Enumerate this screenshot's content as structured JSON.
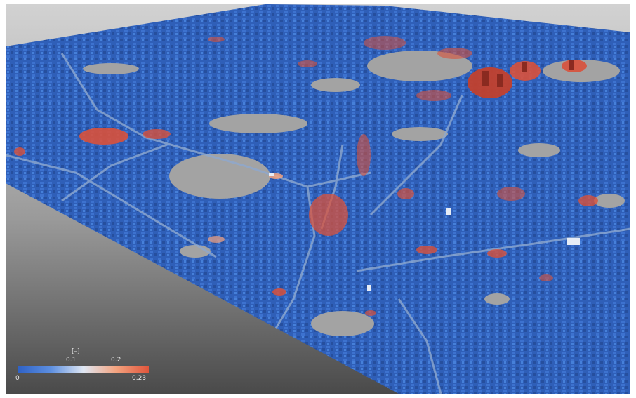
{
  "colorbar": {
    "unit": "[–]",
    "tick_mid_low": "0.1",
    "tick_mid_high": "0.2",
    "min_label": "0",
    "max_label": "0.23",
    "colors": [
      "#2f62c6",
      "#5d8fe0",
      "#dfe7f3",
      "#f3a37f",
      "#e0553b"
    ]
  },
  "map_colors": {
    "background_top": "#d2d2d2",
    "background_bottom": "#4a4a4a",
    "low_value": "#2f62c6",
    "high_value": "#e0553b",
    "empty_area": "#9d9d9d"
  }
}
